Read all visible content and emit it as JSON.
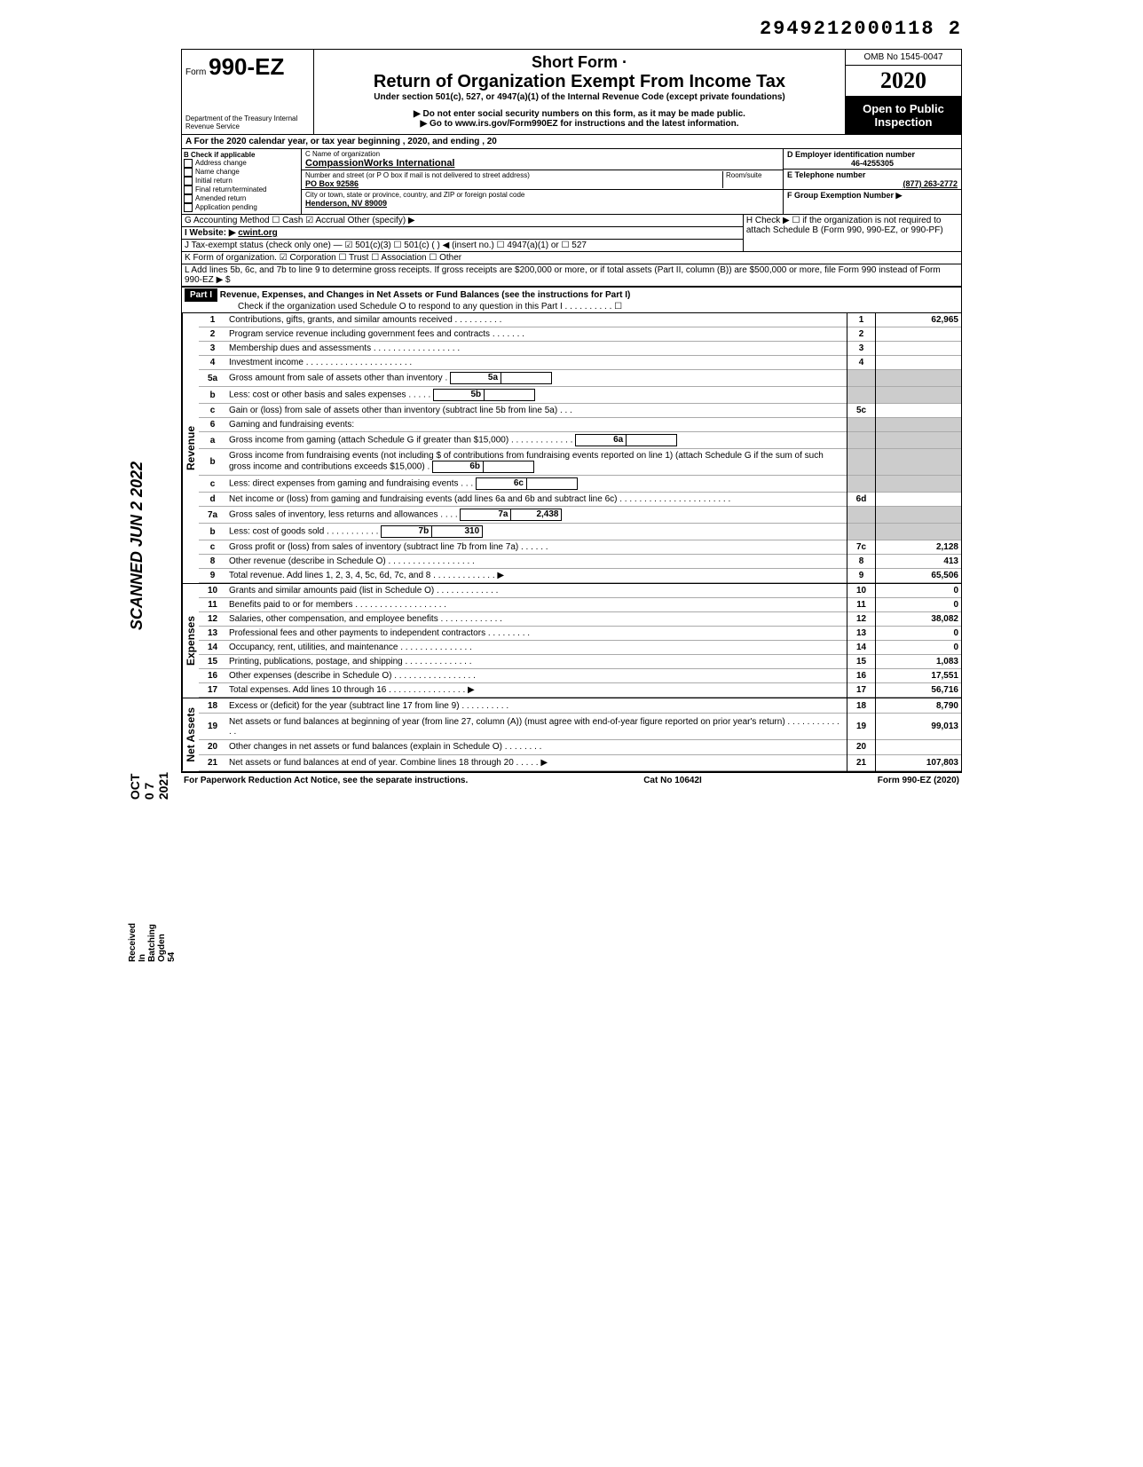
{
  "top_number": "2949212000118 2",
  "header": {
    "form_prefix": "Form",
    "form_number": "990-EZ",
    "dept": "Department of the Treasury\nInternal Revenue Service",
    "short_form": "Short Form ·",
    "return_title": "Return of Organization Exempt From Income Tax",
    "under": "Under section 501(c), 527, or 4947(a)(1) of the Internal Revenue Code (except private foundations)",
    "donot": "▶ Do not enter social security numbers on this form, as it may be made public.",
    "goto": "▶ Go to www.irs.gov/Form990EZ for instructions and the latest information.",
    "omb": "OMB No 1545-0047",
    "year": "2020",
    "open": "Open to Public Inspection"
  },
  "line_a": "A For the 2020 calendar year, or tax year beginning                                , 2020, and ending                                          , 20",
  "col_b": {
    "header": "B Check if applicable",
    "items": [
      "Address change",
      "Name change",
      "Initial return",
      "Final return/terminated",
      "Amended return",
      "Application pending"
    ]
  },
  "col_c": {
    "name_label": "C Name of organization",
    "name": "CompassionWorks International",
    "street_label": "Number and street (or P O box if mail is not delivered to street address)",
    "room_label": "Room/suite",
    "street": "PO Box 92586",
    "city_label": "City or town, state or province, country, and ZIP or foreign postal code",
    "city": "Henderson, NV 89009"
  },
  "col_d": {
    "label": "D Employer identification number",
    "value": "46-4255305"
  },
  "col_e": {
    "label": "E Telephone number",
    "value": "(877) 263-2772"
  },
  "col_f": {
    "label": "F Group Exemption Number ▶"
  },
  "row_g": "G Accounting Method    ☐ Cash   ☑ Accrual   Other (specify) ▶",
  "row_h": "H Check ▶ ☐ if the organization is not required to attach Schedule B (Form 990, 990-EZ, or 990-PF)",
  "row_i_label": "I Website: ▶",
  "row_i_value": "cwint.org",
  "row_j": "J Tax-exempt status (check only one) — ☑ 501(c)(3)   ☐ 501(c) (      ) ◀ (insert no.)  ☐ 4947(a)(1) or   ☐ 527",
  "row_k": "K Form of organization.   ☑ Corporation   ☐ Trust   ☐ Association   ☐ Other",
  "row_l": "L Add lines 5b, 6c, and 7b to line 9 to determine gross receipts. If gross receipts are $200,000 or more, or if total assets (Part II, column (B)) are $500,000 or more, file Form 990 instead of Form 990-EZ                                          ▶  $",
  "part1": {
    "label": "Part I",
    "title": "Revenue, Expenses, and Changes in Net Assets or Fund Balances (see the instructions for Part I)",
    "check": "Check if the organization used Schedule O to respond to any question in this Part I  .  .  .  .  .  .  .  .  .  .  ☐"
  },
  "revenue_label": "Revenue",
  "expenses_label": "Expenses",
  "netassets_label": "Net Assets",
  "lines": {
    "l1": {
      "num": "1",
      "text": "Contributions, gifts, grants, and similar amounts received .   .               .   .   .   .   .   .   .   .",
      "box": "1",
      "amt": "62,965"
    },
    "l2": {
      "num": "2",
      "text": "Program service revenue including government fees and contracts           .   .   .   .   .   .   .",
      "box": "2",
      "amt": ""
    },
    "l3": {
      "num": "3",
      "text": "Membership dues and assessments .         .   .   .   .   .   .   .   .   .   .   .   .   .   .   .   .   .",
      "box": "3",
      "amt": ""
    },
    "l4": {
      "num": "4",
      "text": "Investment income       .   .   .   .   .   .   .   .   .   .   .   .   .   .   .   .   .   .   .   .   .   .",
      "box": "4",
      "amt": ""
    },
    "l5a": {
      "num": "5a",
      "text": "Gross amount from sale of assets other than inventory     .",
      "mbox": "5a",
      "mval": ""
    },
    "l5b": {
      "num": "b",
      "text": "Less: cost or other basis and sales expenses .   .   .   .   .",
      "mbox": "5b",
      "mval": ""
    },
    "l5c": {
      "num": "c",
      "text": "Gain or (loss) from sale of assets other than inventory (subtract line 5b from line 5a)   .   .   .",
      "box": "5c",
      "amt": ""
    },
    "l6": {
      "num": "6",
      "text": "Gaming and fundraising events:"
    },
    "l6a": {
      "num": "a",
      "text": "Gross income from gaming (attach Schedule G if greater than $15,000) .        .   .   .   .   .   .      .          .   .   .   .   .",
      "mbox": "6a",
      "mval": ""
    },
    "l6b": {
      "num": "b",
      "text": "Gross income from fundraising events (not including  $                      of contributions from fundraising events reported on line 1) (attach Schedule G if the sum of such gross income and contributions exceeds $15,000)    .",
      "mbox": "6b",
      "mval": ""
    },
    "l6c": {
      "num": "c",
      "text": "Less: direct expenses from gaming and fundraising events    .   .   .",
      "mbox": "6c",
      "mval": ""
    },
    "l6d": {
      "num": "d",
      "text": "Net income or (loss) from gaming and fundraising events (add lines 6a and 6b and subtract line 6c)     .   .   .   .   .   .   .   .   .   .   .   .   .   .   .   .   .   .               .   .   .   .   .",
      "box": "6d",
      "amt": ""
    },
    "l7a": {
      "num": "7a",
      "text": "Gross sales of inventory, less returns and allowances  .   .   .   .",
      "mbox": "7a",
      "mval": "2,438"
    },
    "l7b": {
      "num": "b",
      "text": "Less: cost of goods sold          .   .   .   .   .   .   .   .   .   .   .",
      "mbox": "7b",
      "mval": "310"
    },
    "l7c": {
      "num": "c",
      "text": "Gross profit or (loss) from sales of inventory (subtract line 7b from line 7a)  .   .   .   .   .   .",
      "box": "7c",
      "amt": "2,128"
    },
    "l8": {
      "num": "8",
      "text": "Other revenue (describe in Schedule O) .   .   .   .   .   .   .   .   .   .   .   .   .   .   .   .   .   .",
      "box": "8",
      "amt": "413"
    },
    "l9": {
      "num": "9",
      "text": "Total revenue. Add lines 1, 2, 3, 4, 5c, 6d, 7c, and 8   .   .   .   .   .   .   .   .   .   .   .   .   .  ▶",
      "box": "9",
      "amt": "65,506"
    },
    "l10": {
      "num": "10",
      "text": "Grants and similar amounts paid (list in Schedule O)   .   .   .   .   .   .   .   .   .   .   .   .   .",
      "box": "10",
      "amt": "0"
    },
    "l11": {
      "num": "11",
      "text": "Benefits paid to or for members    .   .   .   .   .   .   .   .   .   .   .   .   .   .   .   .   .   .   .",
      "box": "11",
      "amt": "0"
    },
    "l12": {
      "num": "12",
      "text": "Salaries, other compensation, and employee benefits  .   .   .   .   .   .   .   .   .   .   .    .   .",
      "box": "12",
      "amt": "38,082"
    },
    "l13": {
      "num": "13",
      "text": "Professional fees and other payments to independent contractors .   .   .   .   .   .   .   .   .",
      "box": "13",
      "amt": "0"
    },
    "l14": {
      "num": "14",
      "text": "Occupancy, rent, utilities, and maintenance    .   .   .   .   .   .   .   .   .   .   .   .   .   .   .",
      "box": "14",
      "amt": "0"
    },
    "l15": {
      "num": "15",
      "text": "Printing, publications, postage, and shipping .           .   .   .   .   .   .   .   .   .   .   .   .   .",
      "box": "15",
      "amt": "1,083"
    },
    "l16": {
      "num": "16",
      "text": "Other expenses (describe in Schedule O)  .   .   .   .   .   .   .   .   .   .   .   .   .   .   .   .   .",
      "box": "16",
      "amt": "17,551"
    },
    "l17": {
      "num": "17",
      "text": "Total expenses. Add lines 10 through 16 .   .   .   .   .   .   .   .   .   .   .   .   .   .   .   .   ▶",
      "box": "17",
      "amt": "56,716"
    },
    "l18": {
      "num": "18",
      "text": "Excess or (deficit) for the year (subtract line 17 from line 9)      .   .   .   .   .   .   .   .   .   .",
      "box": "18",
      "amt": "8,790"
    },
    "l19": {
      "num": "19",
      "text": "Net assets or fund balances at beginning of year (from line 27, column (A)) (must agree with end-of-year figure reported on prior year's return)     .   .   .   .   .   .   .   .   .   .   .   .   .",
      "box": "19",
      "amt": "99,013"
    },
    "l20": {
      "num": "20",
      "text": "Other changes in net assets or fund balances (explain in Schedule O) .   .   .   .   .   .   .   .",
      "box": "20",
      "amt": ""
    },
    "l21": {
      "num": "21",
      "text": "Net assets or fund balances at end of year. Combine lines 18 through 20      .   .   .   .   .  ▶",
      "box": "21",
      "amt": "107,803"
    }
  },
  "footer": {
    "left": "For Paperwork Reduction Act Notice, see the separate instructions.",
    "center": "Cat No 10642I",
    "right": "Form 990-EZ (2020)"
  },
  "stamps": {
    "scanned": "SCANNED JUN 2 2022",
    "date1": "OCT 0 7 2021",
    "received": "Received In\nBatching Ogden\n54"
  }
}
